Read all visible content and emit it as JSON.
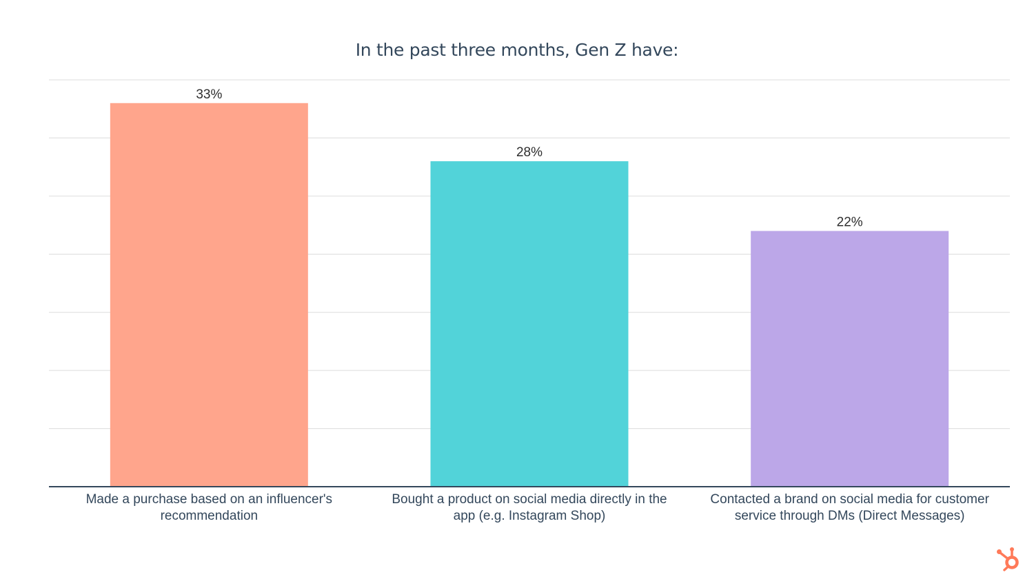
{
  "chart_data": {
    "type": "bar",
    "title": "In the past three months, Gen Z have:",
    "xlabel": "",
    "ylabel": "",
    "categories": [
      [
        "Made a purchase based on an influencer's",
        "recommendation"
      ],
      [
        "Bought a product on social media directly in the",
        "app (e.g. Instagram Shop)"
      ],
      [
        "Contacted a brand on social media for customer",
        "service through DMs (Direct Messages)"
      ]
    ],
    "values": [
      33,
      28,
      22
    ],
    "value_labels": [
      "33%",
      "28%",
      "22%"
    ],
    "colors": [
      "#ffa58c",
      "#52d3d9",
      "#bca7e8"
    ],
    "ylim": [
      0,
      35
    ],
    "grid": true,
    "legend": "none"
  },
  "brand": {
    "logo_icon": "hubspot-sprocket-icon",
    "logo_color": "#ff7a59"
  }
}
